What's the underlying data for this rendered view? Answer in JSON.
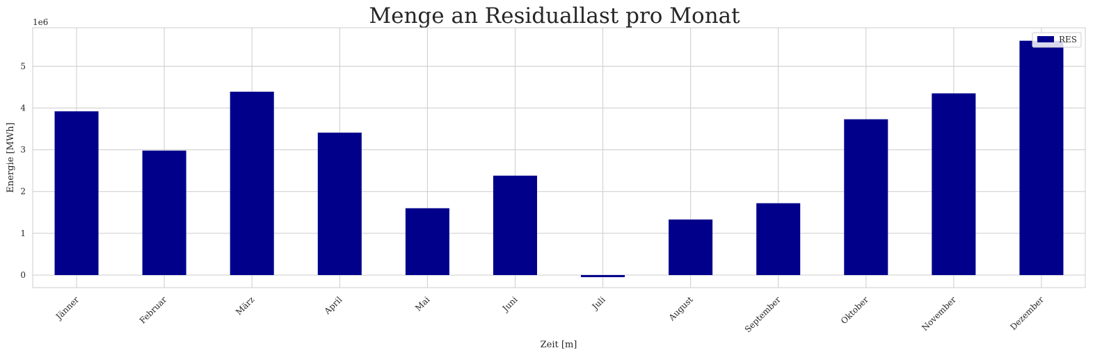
{
  "chart_data": {
    "type": "bar",
    "title": "Menge an Residuallast pro Monat",
    "xlabel": "Zeit [m]",
    "ylabel": "Energie [MWh]",
    "y_offset_label": "1e6",
    "categories": [
      "Jänner",
      "Februar",
      "März",
      "April",
      "Mai",
      "Juni",
      "Juli",
      "August",
      "September",
      "Oktober",
      "November",
      "Dezember"
    ],
    "series": [
      {
        "name": "RES",
        "color": "#00008b",
        "values": [
          3920000,
          2980000,
          4390000,
          3410000,
          1600000,
          2380000,
          -50000,
          1330000,
          1720000,
          3730000,
          4350000,
          5610000
        ]
      }
    ],
    "ylim": [
      -300000,
      5920000
    ],
    "yticks": [
      0,
      1000000,
      2000000,
      3000000,
      4000000,
      5000000
    ],
    "ytick_labels": [
      "0",
      "1",
      "2",
      "3",
      "4",
      "5"
    ],
    "grid": true,
    "legend_position": "top-right",
    "colors": {
      "bar": "#00008b",
      "grid": "#cccccc",
      "axes_edge": "#cccccc",
      "text": "#262626"
    }
  }
}
